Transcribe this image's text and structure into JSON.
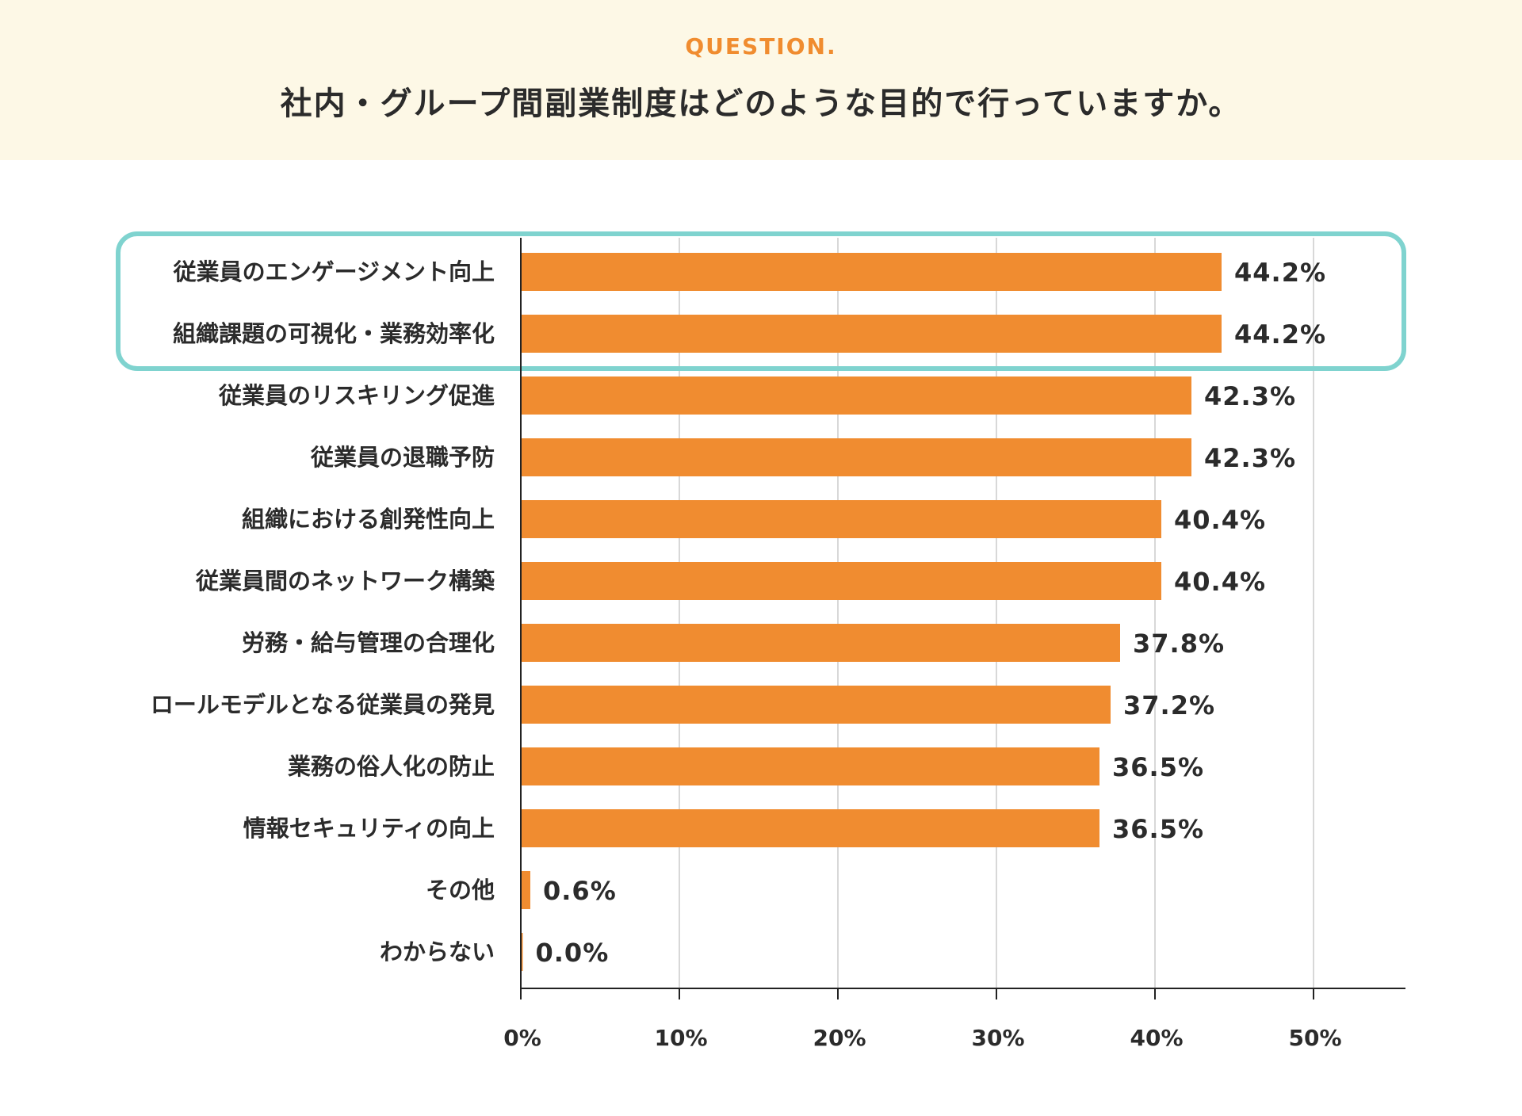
{
  "header": {
    "eyebrow": "QUESTION.",
    "question": "社内・グループ間副業制度はどのような目的で行っていますか。"
  },
  "colors": {
    "header_bg": "#fdf8e6",
    "accent": "#f08c2f",
    "bar": "#f08c30",
    "highlight_border": "#7fd3cf",
    "text": "#2b2b2b",
    "grid": "#cccccc"
  },
  "chart_data": {
    "type": "bar",
    "orientation": "horizontal",
    "categories": [
      "従業員のエンゲージメント向上",
      "組織課題の可視化・業務効率化",
      "従業員のリスキリング促進",
      "従業員の退職予防",
      "組織における創発性向上",
      "従業員間のネットワーク構築",
      "労務・給与管理の合理化",
      "ロールモデルとなる従業員の発見",
      "業務の俗人化の防止",
      "情報セキュリティの向上",
      "その他",
      "わからない"
    ],
    "values": [
      44.2,
      44.2,
      42.3,
      42.3,
      40.4,
      40.4,
      37.8,
      37.2,
      36.5,
      36.5,
      0.6,
      0.0
    ],
    "value_labels": [
      "44.2%",
      "44.2%",
      "42.3%",
      "42.3%",
      "40.4%",
      "40.4%",
      "37.8%",
      "37.2%",
      "36.5%",
      "36.5%",
      "0.6%",
      "0.0%"
    ],
    "xticks": [
      "0%",
      "10%",
      "20%",
      "30%",
      "40%",
      "50%"
    ],
    "xtick_values": [
      0,
      10,
      20,
      30,
      40,
      50
    ],
    "xlim": [
      0,
      56
    ],
    "grid": true,
    "highlighted_categories": [
      0,
      1
    ]
  }
}
